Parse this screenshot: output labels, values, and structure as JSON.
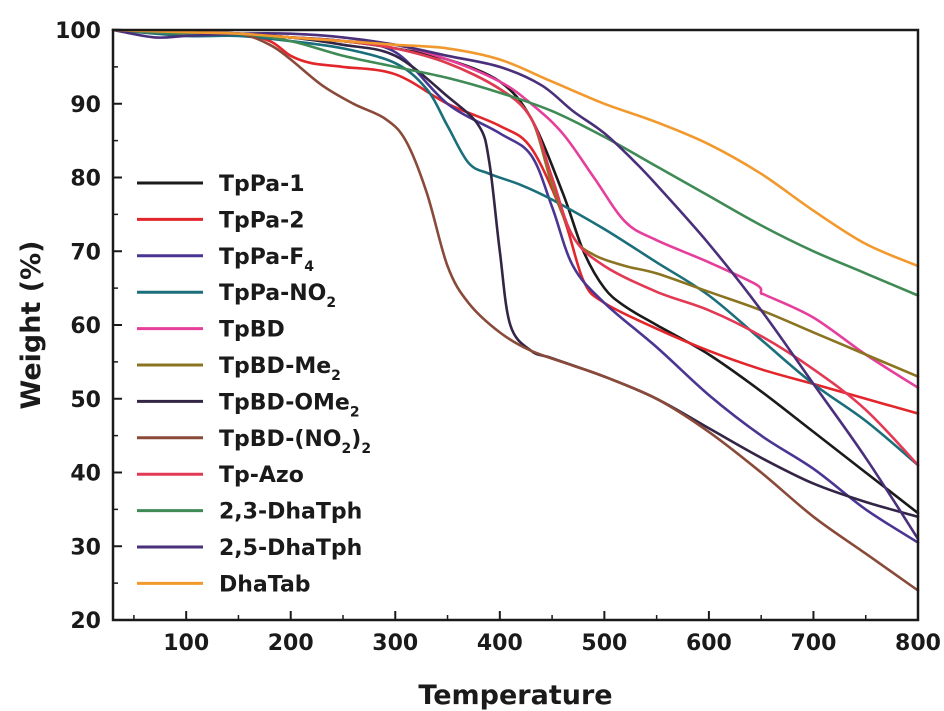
{
  "chart_data": {
    "type": "line",
    "title": "",
    "xlabel": "Temperature",
    "ylabel": "Weight (%)",
    "xlim": [
      30,
      800
    ],
    "ylim": [
      20,
      100
    ],
    "xticks": [
      100,
      200,
      300,
      400,
      500,
      600,
      700,
      800
    ],
    "yticks": [
      20,
      30,
      40,
      50,
      60,
      70,
      80,
      90,
      100
    ],
    "legend_position": "left-center",
    "grid": false,
    "series": [
      {
        "name": "TpPa-1",
        "name_parts": [
          {
            "t": "TpPa-1"
          }
        ],
        "color": "#1a1a1a",
        "x": [
          30,
          100,
          150,
          200,
          250,
          300,
          350,
          400,
          430,
          460,
          480,
          500,
          520,
          550,
          600,
          650,
          700,
          750,
          800
        ],
        "y": [
          100,
          99.5,
          99.3,
          99,
          98.5,
          97.5,
          96,
          93,
          88,
          78,
          70,
          65,
          62.5,
          60,
          56,
          51,
          45.5,
          40,
          34.5
        ]
      },
      {
        "name": "TpPa-2",
        "name_parts": [
          {
            "t": "TpPa-2"
          }
        ],
        "color": "#e2262b",
        "x": [
          30,
          100,
          150,
          180,
          200,
          220,
          250,
          300,
          350,
          400,
          430,
          460,
          480,
          500,
          550,
          600,
          650,
          700,
          750,
          800
        ],
        "y": [
          100,
          99.5,
          99.5,
          98.5,
          96.5,
          95.5,
          95,
          94,
          90,
          87,
          84,
          75,
          66,
          63,
          59.5,
          56.5,
          54,
          52,
          50,
          48
        ]
      },
      {
        "name": "TpPa-F4",
        "name_parts": [
          {
            "t": "TpPa-F"
          },
          {
            "t": "4",
            "sub": true
          }
        ],
        "color": "#4b3592",
        "x": [
          30,
          100,
          150,
          200,
          250,
          300,
          350,
          400,
          430,
          450,
          470,
          500,
          550,
          600,
          650,
          700,
          750,
          800
        ],
        "y": [
          100,
          99.5,
          99.5,
          99,
          98.5,
          97,
          90,
          86,
          83,
          76,
          68,
          63,
          57,
          50.5,
          45,
          40.5,
          35,
          30.5
        ]
      },
      {
        "name": "TpPa-NO2",
        "name_parts": [
          {
            "t": "TpPa-NO"
          },
          {
            "t": "2",
            "sub": true
          }
        ],
        "color": "#1a6f7a",
        "x": [
          30,
          100,
          150,
          200,
          250,
          300,
          330,
          350,
          370,
          390,
          420,
          450,
          500,
          550,
          600,
          650,
          700,
          750,
          800
        ],
        "y": [
          100,
          99.2,
          99.2,
          98.5,
          97.5,
          95.5,
          92,
          87,
          82,
          80.5,
          79,
          77,
          73,
          68.5,
          64,
          58,
          52,
          47,
          41
        ]
      },
      {
        "name": "TpBD",
        "name_parts": [
          {
            "t": "TpBD"
          }
        ],
        "color": "#e63e9b",
        "x": [
          30,
          100,
          150,
          200,
          250,
          300,
          350,
          400,
          430,
          460,
          490,
          520,
          550,
          600,
          645,
          650,
          655,
          700,
          750,
          800
        ],
        "y": [
          100,
          99.7,
          99.5,
          99,
          98.5,
          98,
          96,
          93,
          90,
          86,
          80,
          74,
          71.5,
          68.5,
          65.5,
          64.3,
          64,
          61,
          56,
          51.5
        ]
      },
      {
        "name": "TpBD-Me2",
        "name_parts": [
          {
            "t": "TpBD-Me"
          },
          {
            "t": "2",
            "sub": true
          }
        ],
        "color": "#8b7421",
        "x": [
          30,
          100,
          150,
          200,
          250,
          300,
          350,
          400,
          430,
          450,
          470,
          490,
          520,
          550,
          600,
          650,
          700,
          750,
          800
        ],
        "y": [
          100,
          99.5,
          99.5,
          99,
          98.5,
          97.5,
          95.5,
          92,
          88,
          79,
          72,
          69.5,
          68,
          67,
          64.5,
          62,
          59,
          56,
          53
        ]
      },
      {
        "name": "TpBD-OMe2",
        "name_parts": [
          {
            "t": "TpBD-OMe"
          },
          {
            "t": "2",
            "sub": true
          }
        ],
        "color": "#322545",
        "x": [
          30,
          100,
          150,
          200,
          250,
          300,
          350,
          380,
          390,
          400,
          410,
          430,
          450,
          500,
          550,
          600,
          650,
          700,
          750,
          800
        ],
        "y": [
          100,
          99.7,
          99.5,
          99,
          98,
          96.5,
          91,
          87,
          82,
          70,
          60,
          56.5,
          55.5,
          53,
          50,
          46,
          42,
          38.5,
          36,
          34
        ]
      },
      {
        "name": "TpBD-(NO2)2",
        "name_parts": [
          {
            "t": "TpBD-(NO"
          },
          {
            "t": "2",
            "sub": true
          },
          {
            "t": ")"
          },
          {
            "t": "2",
            "sub": true
          }
        ],
        "color": "#8a4a3a",
        "x": [
          30,
          100,
          150,
          180,
          200,
          230,
          260,
          290,
          310,
          330,
          350,
          370,
          400,
          430,
          470,
          500,
          550,
          600,
          650,
          700,
          750,
          800
        ],
        "y": [
          100,
          99.7,
          99.5,
          98,
          96,
          92.5,
          90,
          88,
          85,
          78,
          68,
          63,
          59,
          56.5,
          54.5,
          53,
          50,
          45.5,
          40,
          34,
          29,
          24
        ]
      },
      {
        "name": "Tp-Azo",
        "name_parts": [
          {
            "t": "Tp-Azo"
          }
        ],
        "color": "#e23a55",
        "x": [
          30,
          100,
          150,
          200,
          250,
          300,
          350,
          400,
          430,
          450,
          470,
          500,
          550,
          600,
          650,
          700,
          750,
          800
        ],
        "y": [
          100,
          99.5,
          99.5,
          99,
          98.5,
          97.5,
          95.5,
          92,
          88,
          80,
          72,
          68,
          64.5,
          62,
          58.5,
          54,
          48.5,
          41
        ]
      },
      {
        "name": "2,3-DhaTph",
        "name_parts": [
          {
            "t": "2,3-DhaTph"
          }
        ],
        "color": "#3f8a55",
        "x": [
          30,
          100,
          150,
          200,
          250,
          300,
          350,
          400,
          450,
          500,
          550,
          600,
          650,
          700,
          750,
          800
        ],
        "y": [
          100,
          99.5,
          99.5,
          98.5,
          96.5,
          95,
          93.5,
          91.5,
          89,
          85.5,
          81.5,
          77.5,
          73.5,
          70,
          67,
          64
        ]
      },
      {
        "name": "2,5-DhaTph",
        "name_parts": [
          {
            "t": "2,5-DhaTph"
          }
        ],
        "color": "#4a2f7a",
        "x": [
          30,
          70,
          100,
          150,
          200,
          250,
          300,
          350,
          400,
          440,
          470,
          500,
          530,
          550,
          600,
          650,
          700,
          750,
          800
        ],
        "y": [
          100,
          99,
          99.2,
          99.5,
          99.5,
          99,
          98,
          96.5,
          95,
          92.5,
          89,
          86,
          82,
          79,
          71,
          62,
          52,
          42,
          31
        ]
      },
      {
        "name": "DhaTab",
        "name_parts": [
          {
            "t": "DhaTab"
          }
        ],
        "color": "#f2992e",
        "x": [
          30,
          100,
          150,
          200,
          250,
          300,
          350,
          400,
          450,
          500,
          550,
          600,
          650,
          700,
          750,
          800
        ],
        "y": [
          100,
          99.7,
          99.5,
          99,
          98.5,
          98,
          97.5,
          96,
          93,
          90,
          87.5,
          84.5,
          80.5,
          75.5,
          71,
          68
        ]
      }
    ]
  }
}
